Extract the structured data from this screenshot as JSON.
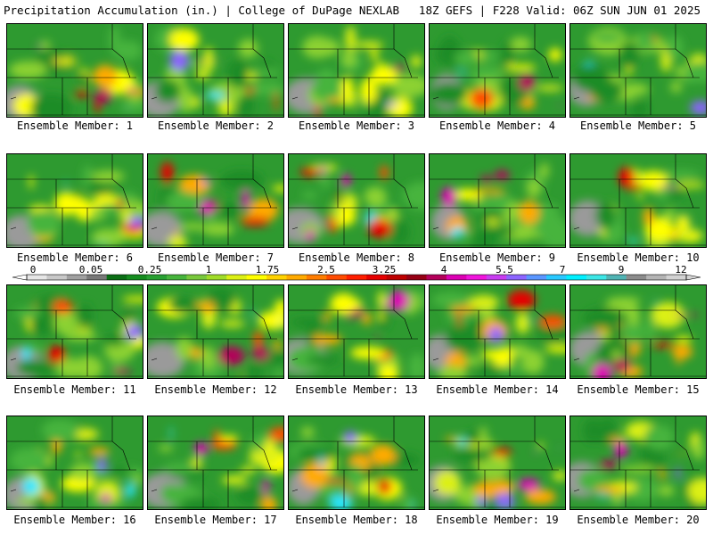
{
  "header": {
    "title": "Precipitation Accumulation (in.) | College of DuPage NEXLAB",
    "run_info": "18Z GEFS | F228 Valid: 06Z SUN JUN 01 2025"
  },
  "colorbar": {
    "ticks": [
      "0",
      "0.05",
      "0.25",
      "1",
      "1.75",
      "2.5",
      "3.25",
      "4",
      "5.5",
      "7",
      "9",
      "12"
    ],
    "colors": [
      "#e6e6e6",
      "#c8c8c8",
      "#a0a0a0",
      "#787878",
      "#0a6e14",
      "#148c1e",
      "#28a032",
      "#46b43c",
      "#78c83c",
      "#a0dc28",
      "#dcf014",
      "#ffff00",
      "#ffd200",
      "#ffaa00",
      "#ff7d00",
      "#ff4b00",
      "#ff1e00",
      "#e60000",
      "#be0000",
      "#960014",
      "#b4005a",
      "#dc00b4",
      "#f014dc",
      "#c83cf0",
      "#8c64ff",
      "#5a96ff",
      "#28c8ff",
      "#00f0ff",
      "#3ce6e6",
      "#50b4b4",
      "#8c8c8c",
      "#b4b4b4",
      "#d2d2d2"
    ]
  },
  "panels": [
    {
      "label": "Ensemble Member: 1"
    },
    {
      "label": "Ensemble Member: 2"
    },
    {
      "label": "Ensemble Member: 3"
    },
    {
      "label": "Ensemble Member: 4"
    },
    {
      "label": "Ensemble Member: 5"
    },
    {
      "label": "Ensemble Member: 6"
    },
    {
      "label": "Ensemble Member: 7"
    },
    {
      "label": "Ensemble Member: 8"
    },
    {
      "label": "Ensemble Member: 9"
    },
    {
      "label": "Ensemble Member: 10"
    },
    {
      "label": "Ensemble Member: 11"
    },
    {
      "label": "Ensemble Member: 12"
    },
    {
      "label": "Ensemble Member: 13"
    },
    {
      "label": "Ensemble Member: 14"
    },
    {
      "label": "Ensemble Member: 15"
    },
    {
      "label": "Ensemble Member: 16"
    },
    {
      "label": "Ensemble Member: 17"
    },
    {
      "label": "Ensemble Member: 18"
    },
    {
      "label": "Ensemble Member: 19"
    },
    {
      "label": "Ensemble Member: 20"
    }
  ]
}
